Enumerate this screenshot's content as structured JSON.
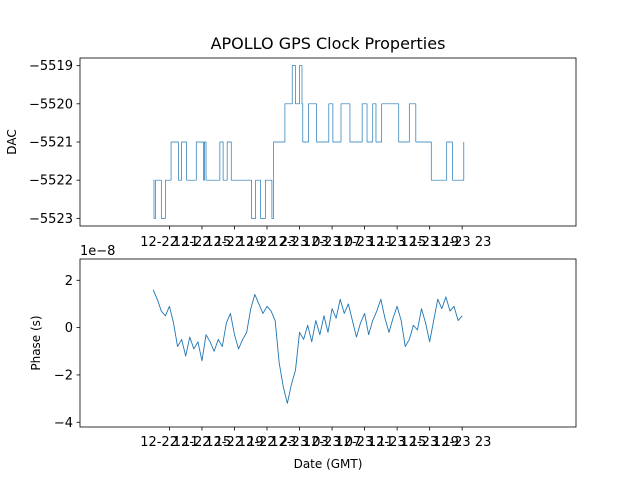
{
  "chart_data": [
    {
      "type": "line",
      "title": "APOLLO GPS Clock Properties",
      "xlabel": "",
      "ylabel": "DAC",
      "xlim": [
        0,
        61
      ],
      "ylim": [
        -5523.2,
        -5518.8
      ],
      "yticks": [
        -5523,
        -5522,
        -5521,
        -5520,
        -5519
      ],
      "ytick_labels": [
        "−5523",
        "−5522",
        "−5521",
        "−5520",
        "−5519"
      ],
      "xticks": [
        11,
        15,
        19,
        23,
        27,
        31,
        35,
        39,
        43,
        47
      ],
      "xtick_labels": [
        "12-22 11",
        "12-22 15",
        "12-22 19",
        "12-22 23",
        "12-23 03",
        "12-23 07",
        "12-23 11",
        "12-23 15",
        "12-23 19",
        "12-23 23"
      ],
      "grid": false,
      "series_color": "#1f77b4",
      "x": [
        9.0,
        9.1,
        9.3,
        10.0,
        10.5,
        11.2,
        12.1,
        12.5,
        13.1,
        14.3,
        15.2,
        15.3,
        15.5,
        16.2,
        16.7,
        17.2,
        17.6,
        18.1,
        18.6,
        19.0,
        19.8,
        21.1,
        21.6,
        22.2,
        22.8,
        23.6,
        23.8,
        25.2,
        26.1,
        26.5,
        27.0,
        27.3,
        27.4,
        28.1,
        29.1,
        30.6,
        31.1,
        32.1,
        33.2,
        33.9,
        34.7,
        35.3,
        36.0,
        36.4,
        37.1,
        39.2,
        40.5,
        41.3,
        42.1,
        42.9,
        43.2,
        44.0,
        45.1,
        45.8,
        46.3,
        46.8,
        47.2
      ],
      "y": [
        -5522,
        -5523,
        -5522,
        -5523,
        -5522,
        -5521,
        -5522,
        -5521,
        -5522,
        -5521,
        -5522,
        -5521,
        -5522,
        -5522,
        -5522,
        -5521,
        -5522,
        -5521,
        -5522,
        -5522,
        -5522,
        -5523,
        -5522,
        -5523,
        -5522,
        -5523,
        -5521,
        -5520,
        -5519,
        -5520,
        -5519,
        -5520,
        -5521,
        -5520,
        -5521,
        -5520,
        -5521,
        -5520,
        -5521,
        -5521,
        -5520,
        -5521,
        -5520,
        -5521,
        -5520,
        -5521,
        -5520,
        -5521,
        -5521,
        -5521,
        -5522,
        -5522,
        -5521,
        -5522,
        -5522,
        -5522,
        -5521
      ]
    },
    {
      "type": "line",
      "title": "",
      "xlabel": "Date (GMT)",
      "ylabel": "Phase (s)",
      "offset_label": "1e−8",
      "xlim": [
        0,
        61
      ],
      "ylim": [
        -4.2,
        2.9
      ],
      "yticks": [
        -4,
        -2,
        0,
        2
      ],
      "ytick_labels": [
        "−4",
        "−2",
        "0",
        "2"
      ],
      "xticks": [
        11,
        15,
        19,
        23,
        27,
        31,
        35,
        39,
        43,
        47
      ],
      "xtick_labels": [
        "12-22 11",
        "12-22 15",
        "12-22 19",
        "12-22 23",
        "12-23 03",
        "12-23 07",
        "12-23 11",
        "12-23 15",
        "12-23 19",
        "12-23 23"
      ],
      "grid": false,
      "series_color": "#1f77b4",
      "x": [
        9.0,
        9.5,
        10.0,
        10.5,
        11.0,
        11.5,
        12.0,
        12.5,
        13.0,
        13.5,
        14.0,
        14.5,
        15.0,
        15.5,
        16.0,
        16.5,
        17.0,
        17.5,
        18.0,
        18.5,
        19.0,
        19.5,
        20.0,
        20.5,
        21.0,
        21.5,
        22.0,
        22.5,
        23.0,
        23.5,
        24.0,
        24.5,
        25.0,
        25.5,
        26.0,
        26.5,
        27.0,
        27.5,
        28.0,
        28.5,
        29.0,
        29.5,
        30.0,
        30.5,
        31.0,
        31.5,
        32.0,
        32.5,
        33.0,
        33.5,
        34.0,
        34.5,
        35.0,
        35.5,
        36.0,
        36.5,
        37.0,
        37.5,
        38.0,
        38.5,
        39.0,
        39.5,
        40.0,
        40.5,
        41.0,
        41.5,
        42.0,
        42.5,
        43.0,
        43.5,
        44.0,
        44.5,
        45.0,
        45.5,
        46.0,
        46.5,
        47.0
      ],
      "y": [
        1.6,
        1.2,
        0.7,
        0.5,
        0.9,
        0.2,
        -0.8,
        -0.5,
        -1.2,
        -0.4,
        -0.9,
        -0.6,
        -1.4,
        -0.3,
        -0.6,
        -1.0,
        -0.5,
        -0.8,
        0.2,
        0.6,
        -0.3,
        -0.9,
        -0.5,
        -0.2,
        0.8,
        1.4,
        1.0,
        0.6,
        0.9,
        0.7,
        0.3,
        -1.5,
        -2.5,
        -3.2,
        -2.4,
        -1.8,
        -0.2,
        -0.5,
        0.1,
        -0.6,
        0.3,
        -0.3,
        0.5,
        -0.2,
        0.8,
        0.4,
        1.2,
        0.6,
        1.0,
        0.3,
        -0.4,
        0.2,
        0.6,
        -0.3,
        0.3,
        0.7,
        1.2,
        0.4,
        -0.2,
        0.4,
        0.9,
        0.3,
        -0.8,
        -0.5,
        0.1,
        -0.1,
        0.8,
        0.2,
        -0.6,
        0.3,
        1.2,
        0.8,
        1.3,
        0.7,
        0.9,
        0.3,
        0.5
      ]
    }
  ]
}
